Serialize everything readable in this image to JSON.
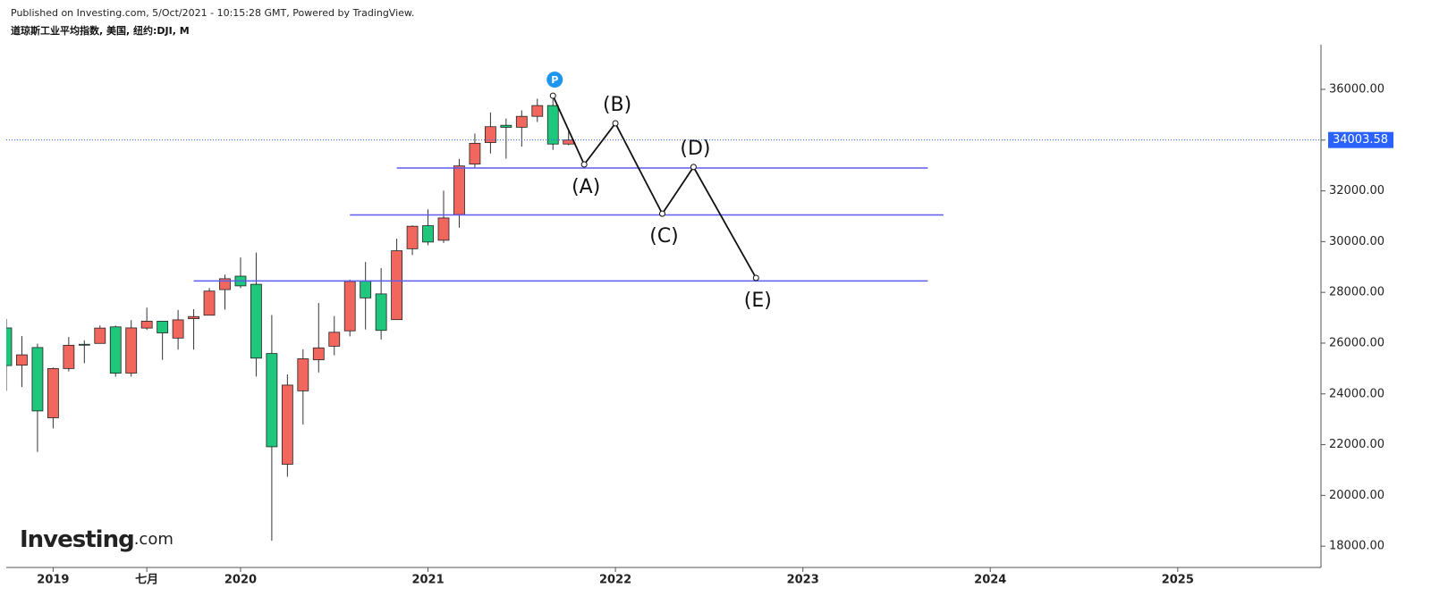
{
  "chart_data": {
    "type": "candlestick",
    "source": "Published on Investing.com, 5/Oct/2021 - 10:15:28 GMT, Powered by TradingView.",
    "title": "道琼斯工业平均指数, 美国, 纽约:DJI, M",
    "logo": [
      "Investing",
      ".com"
    ],
    "x": [
      "2018-10",
      "2018-11",
      "2018-12",
      "2019-01",
      "2019-02",
      "2019-03",
      "2019-04",
      "2019-05",
      "2019-06",
      "2019-07",
      "2019-08",
      "2019-09",
      "2019-10",
      "2019-11",
      "2019-12",
      "2020-01",
      "2020-02",
      "2020-03",
      "2020-04",
      "2020-05",
      "2020-06",
      "2020-07",
      "2020-08",
      "2020-09",
      "2020-10",
      "2020-11",
      "2020-12",
      "2021-01",
      "2021-02",
      "2021-03",
      "2021-04",
      "2021-05",
      "2021-06",
      "2021-07",
      "2021-08",
      "2021-09",
      "2021-10"
    ],
    "open": [
      26598,
      25130,
      25826,
      23058,
      24999,
      25954,
      25989,
      26640,
      24819,
      26593,
      26863,
      26199,
      26963,
      27100,
      28109,
      28639,
      28319,
      25591,
      21227,
      24120,
      25342,
      25879,
      26484,
      28440,
      27939,
      26925,
      29718,
      30627,
      30054,
      31065,
      33054,
      33904,
      34584,
      34507,
      34936,
      35361,
      33844
    ],
    "high": [
      26951,
      26277,
      25980,
      25040,
      26241,
      26109,
      26696,
      26689,
      26907,
      27398,
      26864,
      27306,
      27336,
      28175,
      28701,
      29374,
      29568,
      27102,
      24765,
      25758,
      27581,
      27066,
      28502,
      29199,
      28958,
      30116,
      30638,
      31272,
      32010,
      33259,
      34257,
      35091,
      34849,
      35172,
      35631,
      35631,
      34400
    ],
    "low": [
      24122,
      24268,
      21713,
      22639,
      24883,
      25208,
      25989,
      24680,
      24680,
      26522,
      25339,
      25744,
      25743,
      27100,
      27325,
      28170,
      24681,
      18214,
      20735,
      22790,
      24844,
      25524,
      26266,
      26537,
      26143,
      26925,
      29470,
      29856,
      29945,
      30547,
      32894,
      33474,
      33271,
      33742,
      34713,
      33613,
      33800
    ],
    "close": [
      25116,
      25538,
      23327,
      24999,
      25916,
      25929,
      26593,
      24815,
      26600,
      26864,
      26403,
      26917,
      27046,
      28051,
      28538,
      28256,
      25409,
      21917,
      24346,
      25383,
      25813,
      26428,
      28430,
      27782,
      26502,
      29639,
      30606,
      29983,
      30932,
      32982,
      33875,
      34529,
      34503,
      34935,
      35361,
      33844,
      34003.58
    ],
    "up_color": "#f2675d",
    "down_color": "#1fc77d",
    "xlim": [
      "2018-10",
      "2025-10"
    ],
    "xticks": [
      {
        "value": "2019-01",
        "label": "2019"
      },
      {
        "value": "2019-07",
        "label": "七月"
      },
      {
        "value": "2020-01",
        "label": "2020"
      },
      {
        "value": "2021-01",
        "label": "2021"
      },
      {
        "value": "2022-01",
        "label": "2022"
      },
      {
        "value": "2023-01",
        "label": "2023"
      },
      {
        "value": "2024-01",
        "label": "2024"
      },
      {
        "value": "2025-01",
        "label": "2025"
      }
    ],
    "ylim": [
      17160,
      37760
    ],
    "yticks": [
      {
        "value": 18000,
        "label": "18000.00"
      },
      {
        "value": 20000,
        "label": "20000.00"
      },
      {
        "value": 22000,
        "label": "22000.00"
      },
      {
        "value": 24000,
        "label": "24000.00"
      },
      {
        "value": 26000,
        "label": "26000.00"
      },
      {
        "value": 28000,
        "label": "28000.00"
      },
      {
        "value": 30000,
        "label": "30000.00"
      },
      {
        "value": 32000,
        "label": "32000.00"
      },
      {
        "value": 34000,
        "label": "34000.00"
      },
      {
        "value": 36000,
        "label": "36000.00"
      }
    ],
    "last_price": 34003.58,
    "levels": [
      {
        "value": 32900,
        "start": "2020-11",
        "end": "2023-09"
      },
      {
        "value": 31050,
        "start": "2020-08",
        "end": "2023-10"
      },
      {
        "value": 28450,
        "start": "2019-10",
        "end": "2023-09"
      }
    ],
    "level_color": "#5b5bf0",
    "marker": {
      "x": "2021-09",
      "value": 35750,
      "label": "P"
    },
    "wave": [
      {
        "x": "2021-09",
        "value": 35750
      },
      {
        "x": "2021-11",
        "value": 33040,
        "label": "(A)"
      },
      {
        "x": "2022-01",
        "value": 34660,
        "label": "(B)"
      },
      {
        "x": "2022-04",
        "value": 31100,
        "label": "(C)"
      },
      {
        "x": "2022-06",
        "value": 32940,
        "label": "(D)"
      },
      {
        "x": "2022-10",
        "value": 28570,
        "label": "(E)"
      }
    ]
  }
}
